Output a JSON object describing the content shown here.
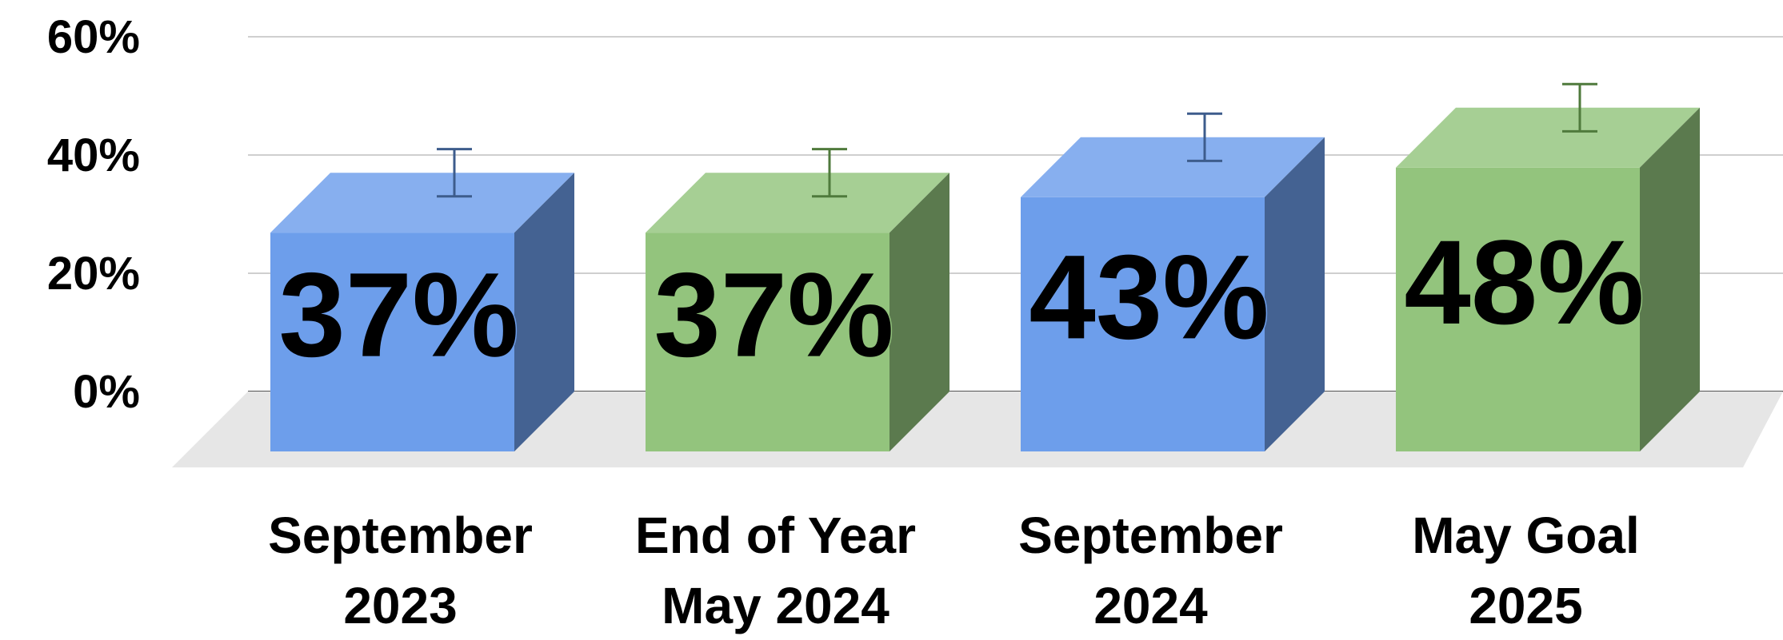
{
  "chart_data": {
    "type": "bar",
    "style": "3d-column",
    "categories": [
      [
        "September",
        "2023"
      ],
      [
        "End of Year",
        "May 2024"
      ],
      [
        "September",
        "2024"
      ],
      [
        "May Goal",
        "2025"
      ]
    ],
    "values": [
      37,
      37,
      43,
      48
    ],
    "data_labels": [
      "37%",
      "37%",
      "43%",
      "48%"
    ],
    "error_bars": [
      [
        33,
        41
      ],
      [
        33,
        41
      ],
      [
        39,
        47
      ],
      [
        44,
        52
      ]
    ],
    "y_ticks": [
      "0%",
      "20%",
      "40%",
      "60%"
    ],
    "ylim": [
      0,
      60
    ],
    "grid": true,
    "colors": [
      "#6d9eeb",
      "#93c47d",
      "#6d9eeb",
      "#93c47d"
    ],
    "error_bar_colors": [
      "#3d5c8c",
      "#4f7a3c",
      "#3d5c8c",
      "#4f7a3c"
    ]
  }
}
